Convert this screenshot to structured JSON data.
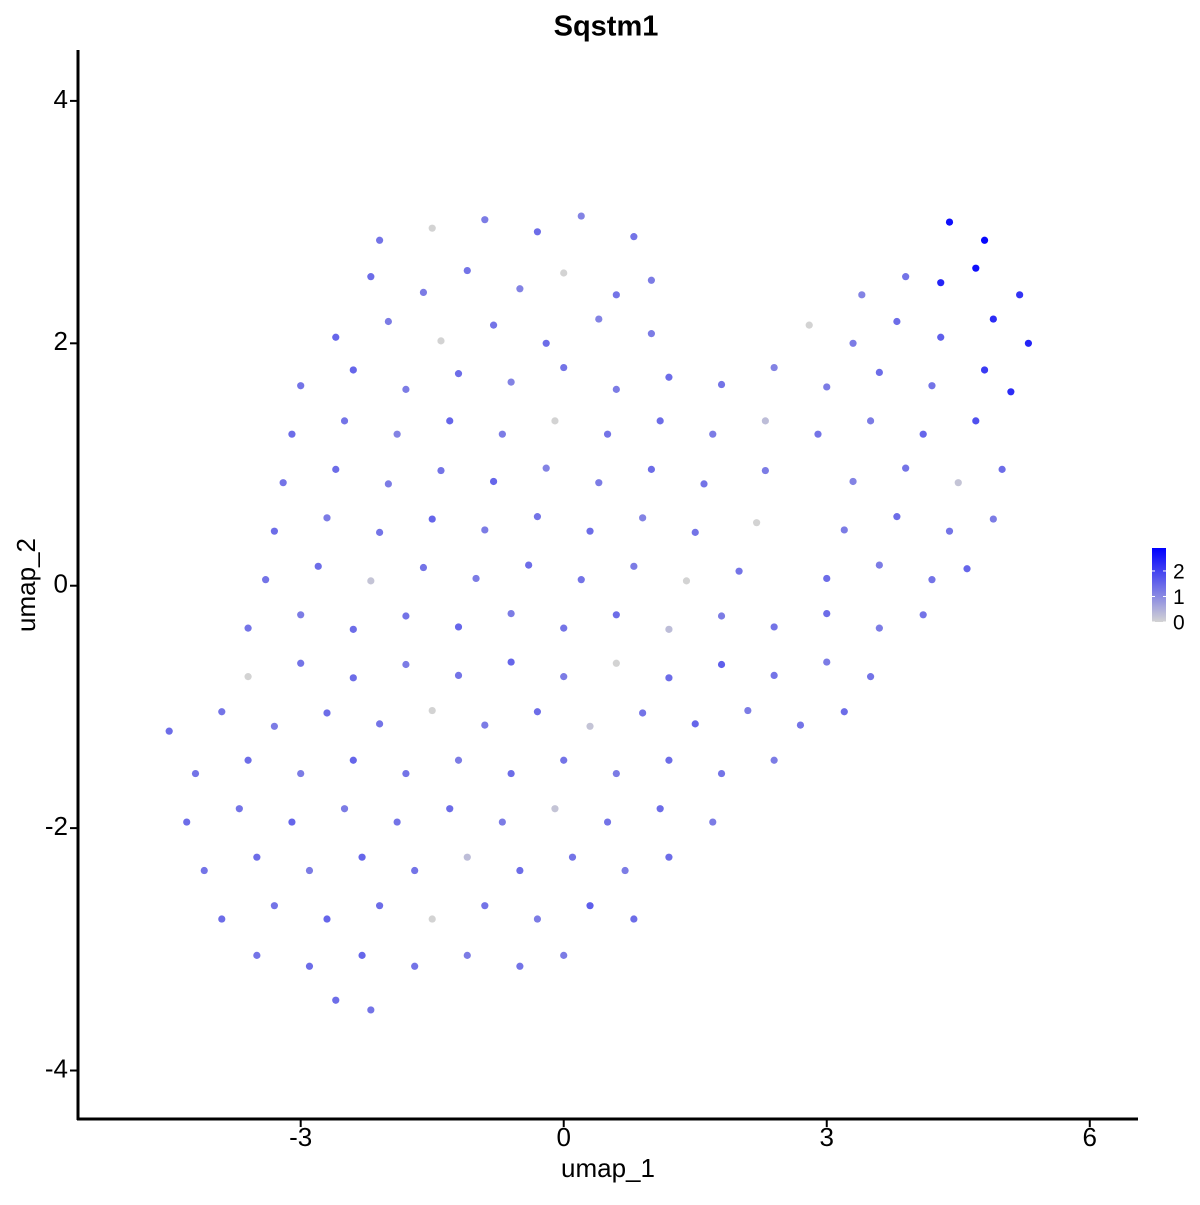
{
  "chart_data": {
    "type": "scatter",
    "title": "Sqstm1",
    "x_label": "umap_1",
    "y_label": "umap_2",
    "xlim": [
      -5.54,
      6.55
    ],
    "ylim": [
      -4.4,
      4.42
    ],
    "xticks": [
      -3,
      0,
      3,
      6
    ],
    "yticks": [
      -4,
      -2,
      0,
      2,
      4
    ],
    "color_low": "#d3d3d3",
    "color_high": "#0000ff",
    "colorbar_lim": [
      0,
      2.9
    ],
    "colorbar_ticks": [
      0,
      1,
      2
    ],
    "x": [
      -2.1,
      -1.5,
      -0.9,
      -0.3,
      0.2,
      0.8,
      4.4,
      4.8,
      -2.2,
      -1.6,
      -1.1,
      -0.5,
      0.0,
      0.6,
      1.0,
      3.4,
      3.9,
      4.3,
      4.7,
      5.2,
      -2.6,
      -2.0,
      -1.4,
      -0.8,
      -0.2,
      0.4,
      1.0,
      2.8,
      3.3,
      3.8,
      4.3,
      4.9,
      5.3,
      -3.0,
      -2.4,
      -1.8,
      -1.2,
      -0.6,
      0.0,
      0.6,
      1.2,
      1.8,
      2.4,
      3.0,
      3.6,
      4.2,
      4.8,
      5.1,
      -3.1,
      -2.5,
      -1.9,
      -1.3,
      -0.7,
      -0.1,
      0.5,
      1.1,
      1.7,
      2.3,
      2.9,
      3.5,
      4.1,
      4.7,
      -3.2,
      -2.6,
      -2.0,
      -1.4,
      -0.8,
      -0.2,
      0.4,
      1.0,
      1.6,
      2.3,
      3.3,
      3.9,
      4.5,
      5.0,
      -3.3,
      -2.7,
      -2.1,
      -1.5,
      -0.9,
      -0.3,
      0.3,
      0.9,
      1.5,
      2.2,
      3.2,
      3.8,
      4.4,
      4.9,
      -3.4,
      -2.8,
      -2.2,
      -1.6,
      -1.0,
      -0.4,
      0.2,
      0.8,
      1.4,
      2.0,
      3.0,
      3.6,
      4.2,
      4.6,
      -3.6,
      -3.0,
      -2.4,
      -1.8,
      -1.2,
      -0.6,
      0.0,
      0.6,
      1.2,
      1.8,
      2.4,
      3.0,
      3.6,
      4.1,
      -3.6,
      -3.0,
      -2.4,
      -1.8,
      -1.2,
      -0.6,
      0.0,
      0.6,
      1.2,
      1.8,
      2.4,
      3.0,
      3.5,
      -4.5,
      -3.9,
      -3.3,
      -2.7,
      -2.1,
      -1.5,
      -0.9,
      -0.3,
      0.3,
      0.9,
      1.5,
      2.1,
      2.7,
      3.2,
      -4.2,
      -3.6,
      -3.0,
      -2.4,
      -1.8,
      -1.2,
      -0.6,
      0.0,
      0.6,
      1.2,
      1.8,
      2.4,
      -4.3,
      -3.7,
      -3.1,
      -2.5,
      -1.9,
      -1.3,
      -0.7,
      -0.1,
      0.5,
      1.1,
      1.7,
      -4.1,
      -3.5,
      -2.9,
      -2.3,
      -1.7,
      -1.1,
      -0.5,
      0.1,
      0.7,
      1.2,
      -3.9,
      -3.3,
      -2.7,
      -2.1,
      -1.5,
      -0.9,
      -0.3,
      0.3,
      0.8,
      -3.5,
      -2.9,
      -2.3,
      -1.7,
      -1.1,
      -0.5,
      0.0,
      -2.6,
      -2.2
    ],
    "values": [
      2.85,
      2.95,
      3.02,
      2.92,
      3.05,
      2.88,
      3.0,
      2.85,
      2.55,
      2.42,
      2.6,
      2.45,
      2.58,
      2.4,
      2.52,
      2.4,
      2.55,
      2.5,
      2.62,
      2.4,
      2.05,
      2.18,
      2.02,
      2.15,
      2.0,
      2.2,
      2.08,
      2.15,
      2.0,
      2.18,
      2.05,
      2.2,
      2.0,
      1.65,
      1.78,
      1.62,
      1.75,
      1.68,
      1.8,
      1.62,
      1.72,
      1.66,
      1.8,
      1.64,
      1.76,
      1.65,
      1.78,
      1.6,
      1.25,
      1.36,
      1.25,
      1.36,
      1.25,
      1.36,
      1.25,
      1.36,
      1.25,
      1.36,
      1.25,
      1.36,
      1.25,
      1.36,
      0.85,
      0.96,
      0.84,
      0.95,
      0.86,
      0.97,
      0.85,
      0.96,
      0.84,
      0.95,
      0.86,
      0.97,
      0.85,
      0.96,
      0.45,
      0.56,
      0.44,
      0.55,
      0.46,
      0.57,
      0.45,
      0.56,
      0.44,
      0.52,
      0.46,
      0.57,
      0.45,
      0.55,
      0.05,
      0.16,
      0.04,
      0.15,
      0.06,
      0.17,
      0.05,
      0.16,
      0.04,
      0.12,
      0.06,
      0.17,
      0.05,
      0.14,
      -0.35,
      -0.24,
      -0.36,
      -0.25,
      -0.34,
      -0.23,
      -0.35,
      -0.24,
      -0.36,
      -0.25,
      -0.34,
      -0.23,
      -0.35,
      -0.24,
      -0.75,
      -0.64,
      -0.76,
      -0.65,
      -0.74,
      -0.63,
      -0.75,
      -0.64,
      -0.76,
      -0.65,
      -0.74,
      -0.63,
      -0.75,
      -1.2,
      -1.04,
      -1.16,
      -1.05,
      -1.14,
      -1.03,
      -1.15,
      -1.04,
      -1.16,
      -1.05,
      -1.14,
      -1.03,
      -1.15,
      -1.04,
      -1.55,
      -1.44,
      -1.55,
      -1.44,
      -1.55,
      -1.44,
      -1.55,
      -1.44,
      -1.55,
      -1.44,
      -1.55,
      -1.44,
      -1.95,
      -1.84,
      -1.95,
      -1.84,
      -1.95,
      -1.84,
      -1.95,
      -1.84,
      -1.95,
      -1.84,
      -1.95,
      -2.35,
      -2.24,
      -2.35,
      -2.24,
      -2.35,
      -2.24,
      -2.35,
      -2.24,
      -2.35,
      -2.24,
      -2.75,
      -2.64,
      -2.75,
      -2.64,
      -2.75,
      -2.64,
      -2.75,
      -2.64,
      -2.75,
      -3.05,
      -3.14,
      -3.05,
      -3.14,
      -3.05,
      -3.14,
      -3.05,
      -3.42,
      -3.5
    ],
    "expression": [
      1.3,
      0,
      1.2,
      1.4,
      1.1,
      1.3,
      2.7,
      2.8,
      1.4,
      1.2,
      1.3,
      1.1,
      0,
      1.3,
      1.2,
      1.1,
      1.3,
      2.4,
      2.7,
      2.2,
      1.5,
      1.2,
      0,
      1.3,
      1.4,
      1.1,
      1.2,
      0,
      1.2,
      1.4,
      1.6,
      2.3,
      2.4,
      1.3,
      1.5,
      1.2,
      1.4,
      1.1,
      1.3,
      1.2,
      1.4,
      1.3,
      1.1,
      1.2,
      1.4,
      1.3,
      2.1,
      2.3,
      1.4,
      1.3,
      1.1,
      1.5,
      1.2,
      0,
      1.3,
      1.4,
      1.2,
      0.3,
      1.3,
      1.2,
      1.5,
      1.8,
      1.3,
      1.4,
      1.2,
      1.3,
      1.5,
      1.1,
      1.2,
      1.4,
      1.3,
      1.2,
      1.1,
      1.3,
      0.2,
      1.4,
      1.4,
      1.2,
      1.3,
      1.5,
      1.2,
      1.3,
      1.4,
      1.1,
      1.3,
      0,
      1.2,
      1.4,
      1.3,
      1.2,
      1.3,
      1.4,
      0.2,
      1.3,
      1.2,
      1.4,
      1.3,
      1.2,
      0,
      1.3,
      1.4,
      1.2,
      1.3,
      1.5,
      1.3,
      1.2,
      1.4,
      1.3,
      1.5,
      1.2,
      1.3,
      1.4,
      0.3,
      1.2,
      1.3,
      1.4,
      1.2,
      1.3,
      0,
      1.3,
      1.4,
      1.2,
      1.3,
      1.5,
      1.2,
      0,
      1.4,
      1.6,
      1.3,
      1.2,
      1.3,
      1.4,
      1.3,
      1.2,
      1.4,
      1.3,
      0,
      1.2,
      1.4,
      0.2,
      1.3,
      1.5,
      1.2,
      1.3,
      1.4,
      1.3,
      1.4,
      1.2,
      1.5,
      1.3,
      1.2,
      1.4,
      1.3,
      1.2,
      1.4,
      1.3,
      1.2,
      1.4,
      1.3,
      1.5,
      1.2,
      1.3,
      1.4,
      1.2,
      0.2,
      1.3,
      1.4,
      1.2,
      1.3,
      1.4,
      1.2,
      1.5,
      1.3,
      0.3,
      1.4,
      1.3,
      1.2,
      1.4,
      1.4,
      1.3,
      1.5,
      1.4,
      0,
      1.3,
      1.2,
      1.6,
      1.4,
      1.3,
      1.4,
      1.5,
      1.3,
      1.2,
      1.3,
      1.2,
      1.4,
      1.3
    ]
  }
}
